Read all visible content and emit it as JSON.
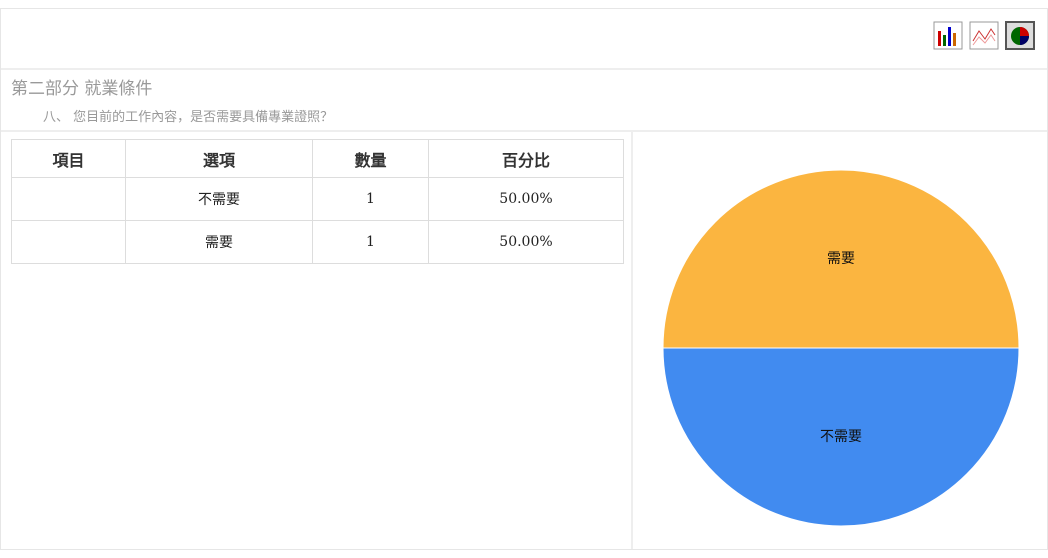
{
  "section": "第二部分 就業條件",
  "question": "八、 您目前的工作內容，是否需要具備專業證照？",
  "table": {
    "headers": [
      "項目",
      "選項",
      "數量",
      "百分比"
    ],
    "rows": [
      {
        "option": "不需要",
        "count": 1,
        "percent": "50.00%"
      },
      {
        "option": "需要",
        "count": 1,
        "percent": "50.00%"
      }
    ]
  },
  "chart_data": {
    "type": "pie",
    "categories": [
      "不需要",
      "需要"
    ],
    "values": [
      1,
      1
    ],
    "colors": [
      "#418bf0",
      "#fbb540"
    ]
  }
}
